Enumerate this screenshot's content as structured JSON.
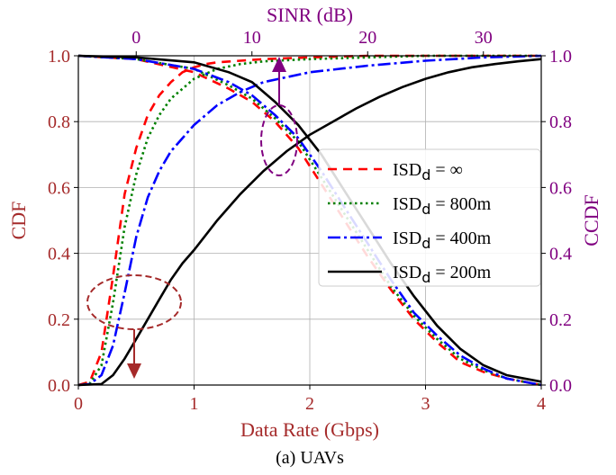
{
  "chart_data": {
    "type": "line",
    "caption": "(a) UAVs",
    "xlabel": "Data Rate (Gbps)",
    "xlim": [
      0,
      4
    ],
    "xticks": [
      "0",
      "1",
      "2",
      "3",
      "4"
    ],
    "ylabel": "CDF",
    "ylim": [
      0,
      1
    ],
    "yticks": [
      "0.0",
      "0.2",
      "0.4",
      "0.6",
      "0.8",
      "1.0"
    ],
    "ylabel_right": "CCDF",
    "yticks_right": [
      "0.0",
      "0.2",
      "0.4",
      "0.6",
      "0.8",
      "1.0"
    ],
    "x2label": "SINR (dB)",
    "x2lim": [
      -5,
      35
    ],
    "x2ticks": [
      "0",
      "10",
      "20",
      "30"
    ],
    "grid": true,
    "legend_position": "center-right",
    "colors": {
      "left_axis": "#a52a2a",
      "right_axis": "#800080",
      "top_axis": "#800080",
      "bottom_axis": "#a52a2a",
      "annotation_left": "#a52a2a",
      "annotation_right": "#800080"
    },
    "series": [
      {
        "name": "ISD_d = ∞",
        "label_main": "ISD",
        "label_sub": "d",
        "label_rest": " = ∞",
        "color": "#ff0000",
        "dash": "10,7",
        "cdf_x": [
          0,
          0.1,
          0.2,
          0.3,
          0.4,
          0.5,
          0.6,
          0.7,
          0.8,
          0.9,
          1.0,
          1.1,
          1.2,
          1.4,
          1.6,
          2.0,
          2.5,
          3.0,
          3.5,
          4.0
        ],
        "cdf_y": [
          0,
          0.01,
          0.1,
          0.33,
          0.58,
          0.72,
          0.82,
          0.88,
          0.92,
          0.95,
          0.965,
          0.975,
          0.98,
          0.985,
          0.99,
          0.995,
          1.0,
          1.0,
          1.0,
          1.0
        ],
        "ccdf_sinr": [
          -5,
          0,
          5,
          8,
          10,
          12,
          14,
          16,
          18,
          20,
          22,
          24,
          26,
          28,
          30,
          32,
          35
        ],
        "ccdf_y": [
          1.0,
          0.99,
          0.95,
          0.9,
          0.86,
          0.8,
          0.72,
          0.61,
          0.5,
          0.39,
          0.29,
          0.2,
          0.13,
          0.07,
          0.04,
          0.02,
          0.0
        ]
      },
      {
        "name": "ISD_d = 800m",
        "label_main": "ISD",
        "label_sub": "d",
        "label_rest": " = 800m",
        "color": "#008000",
        "dash": "2.5,3.5",
        "cdf_x": [
          0,
          0.1,
          0.2,
          0.3,
          0.4,
          0.5,
          0.6,
          0.7,
          0.8,
          0.9,
          1.0,
          1.2,
          1.4,
          1.6,
          2.0,
          2.5,
          3.0,
          3.5,
          4.0
        ],
        "cdf_y": [
          0,
          0.005,
          0.06,
          0.25,
          0.48,
          0.64,
          0.75,
          0.82,
          0.87,
          0.9,
          0.93,
          0.96,
          0.975,
          0.983,
          0.99,
          0.995,
          1.0,
          1.0,
          1.0
        ],
        "ccdf_sinr": [
          -5,
          0,
          5,
          8,
          10,
          12,
          14,
          16,
          18,
          20,
          22,
          24,
          26,
          28,
          30,
          32,
          35
        ],
        "ccdf_y": [
          1.0,
          0.99,
          0.96,
          0.91,
          0.87,
          0.81,
          0.74,
          0.63,
          0.52,
          0.41,
          0.3,
          0.21,
          0.14,
          0.08,
          0.045,
          0.02,
          0.0
        ]
      },
      {
        "name": "ISD_d = 400m",
        "label_main": "ISD",
        "label_sub": "d",
        "label_rest": " = 400m",
        "color": "#0000ff",
        "dash": "14,4,3,4",
        "cdf_x": [
          0,
          0.1,
          0.2,
          0.3,
          0.4,
          0.5,
          0.6,
          0.7,
          0.8,
          0.9,
          1.0,
          1.1,
          1.2,
          1.4,
          1.6,
          1.8,
          2.0,
          2.5,
          3.0,
          3.5,
          4.0
        ],
        "cdf_y": [
          0,
          0.003,
          0.03,
          0.12,
          0.28,
          0.45,
          0.57,
          0.65,
          0.71,
          0.75,
          0.79,
          0.82,
          0.85,
          0.89,
          0.92,
          0.935,
          0.95,
          0.97,
          0.985,
          0.995,
          1.0
        ],
        "ccdf_sinr": [
          -5,
          0,
          5,
          8,
          10,
          12,
          14,
          16,
          18,
          20,
          22,
          24,
          26,
          28,
          30,
          32,
          35
        ],
        "ccdf_y": [
          1.0,
          0.99,
          0.96,
          0.92,
          0.88,
          0.82,
          0.75,
          0.65,
          0.54,
          0.43,
          0.32,
          0.22,
          0.15,
          0.09,
          0.05,
          0.02,
          0.0
        ]
      },
      {
        "name": "ISD_d = 200m",
        "label_main": "ISD",
        "label_sub": "d",
        "label_rest": " = 200m",
        "color": "#000000",
        "dash": "",
        "cdf_x": [
          0,
          0.2,
          0.3,
          0.4,
          0.5,
          0.6,
          0.7,
          0.8,
          0.9,
          1.0,
          1.2,
          1.4,
          1.6,
          1.8,
          2.0,
          2.2,
          2.4,
          2.6,
          2.8,
          3.0,
          3.2,
          3.4,
          3.6,
          3.8,
          4.0
        ],
        "cdf_y": [
          0,
          0.003,
          0.03,
          0.08,
          0.14,
          0.2,
          0.26,
          0.32,
          0.37,
          0.41,
          0.5,
          0.58,
          0.65,
          0.71,
          0.76,
          0.8,
          0.84,
          0.875,
          0.905,
          0.93,
          0.95,
          0.965,
          0.975,
          0.983,
          0.99
        ],
        "ccdf_sinr": [
          -5,
          0,
          5,
          8,
          10,
          12,
          14,
          16,
          18,
          20,
          22,
          24,
          26,
          28,
          30,
          32,
          35
        ],
        "ccdf_y": [
          1.0,
          0.995,
          0.98,
          0.95,
          0.92,
          0.86,
          0.79,
          0.7,
          0.59,
          0.48,
          0.37,
          0.27,
          0.18,
          0.11,
          0.06,
          0.03,
          0.01
        ]
      }
    ]
  }
}
